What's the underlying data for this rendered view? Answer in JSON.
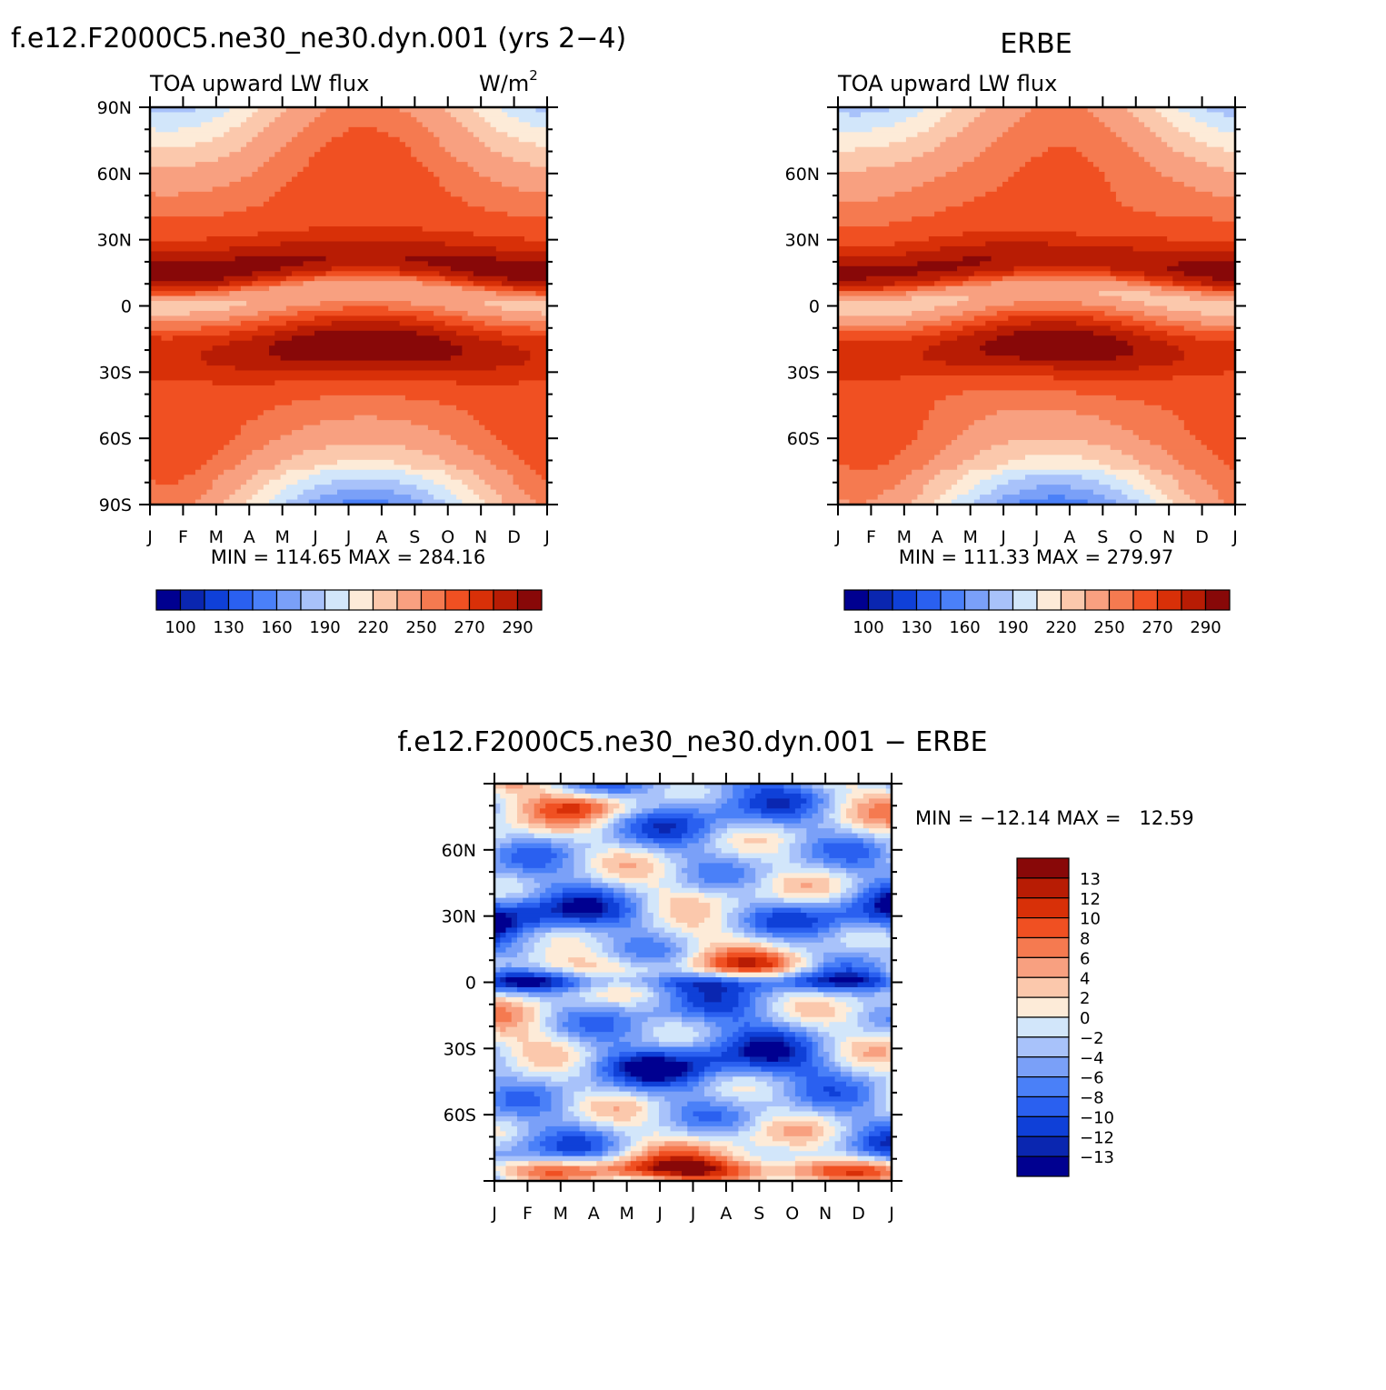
{
  "panels": {
    "model": {
      "title": "f.e12.F2000C5.ne30_ne30.dyn.001 (yrs 2−4)",
      "left_label": "TOA upward LW flux",
      "units_base": "W/m",
      "units_sup": "2",
      "stats": "MIN = 114.65 MAX = 284.16"
    },
    "obs": {
      "title": "ERBE",
      "left_label": "TOA upward LW flux",
      "stats": "MIN = 111.33 MAX = 279.97"
    },
    "diff": {
      "title": "f.e12.F2000C5.ne30_ne30.dyn.001 − ERBE",
      "stats": "MIN = −12.14 MAX =   12.59"
    }
  },
  "chart_data": [
    {
      "type": "heatmap",
      "name": "model",
      "x_ticks": [
        "J",
        "F",
        "M",
        "A",
        "M",
        "J",
        "J",
        "A",
        "S",
        "O",
        "N",
        "D",
        "J"
      ],
      "y_ticks": [
        "90N",
        "60N",
        "30N",
        "0",
        "30S",
        "60S",
        "90S"
      ],
      "ylim": [
        -90,
        90
      ],
      "zmin": 114.65,
      "zmax": 284.16,
      "colorbar": {
        "levels": [
          "100",
          "130",
          "160",
          "190",
          "220",
          "250",
          "270",
          "290"
        ],
        "colors": [
          "#000090",
          "#0a26b0",
          "#0f40d8",
          "#2a60f0",
          "#4a80f8",
          "#7aa0f8",
          "#a8c2fa",
          "#d2e6fa",
          "#fdebd8",
          "#fbc8ac",
          "#f8a080",
          "#f57a50",
          "#f05022",
          "#d83008",
          "#b81c04",
          "#880808"
        ]
      },
      "field": {
        "description_free": true
      }
    },
    {
      "type": "heatmap",
      "name": "obs",
      "x_ticks": [
        "J",
        "F",
        "M",
        "A",
        "M",
        "J",
        "J",
        "A",
        "S",
        "O",
        "N",
        "D",
        "J"
      ],
      "y_ticks": [
        "60N",
        "30N",
        "0",
        "30S",
        "60S"
      ],
      "ylim": [
        -90,
        90
      ],
      "zmin": 111.33,
      "zmax": 279.97,
      "colorbar": {
        "levels": [
          "100",
          "130",
          "160",
          "190",
          "220",
          "250",
          "270",
          "290"
        ],
        "colors": [
          "#000090",
          "#0a26b0",
          "#0f40d8",
          "#2a60f0",
          "#4a80f8",
          "#7aa0f8",
          "#a8c2fa",
          "#d2e6fa",
          "#fdebd8",
          "#fbc8ac",
          "#f8a080",
          "#f57a50",
          "#f05022",
          "#d83008",
          "#b81c04",
          "#880808"
        ]
      }
    },
    {
      "type": "heatmap",
      "name": "diff",
      "x_ticks": [
        "J",
        "F",
        "M",
        "A",
        "M",
        "J",
        "J",
        "A",
        "S",
        "O",
        "N",
        "D",
        "J"
      ],
      "y_ticks": [
        "60N",
        "30N",
        "0",
        "30S",
        "60S"
      ],
      "ylim": [
        -90,
        90
      ],
      "zmin": -12.14,
      "zmax": 12.59,
      "colorbar": {
        "levels": [
          "13",
          "12",
          "10",
          "8",
          "6",
          "4",
          "2",
          "0",
          "−2",
          "−4",
          "−6",
          "−8",
          "−10",
          "−12",
          "−13"
        ],
        "colors": [
          "#880808",
          "#b81c04",
          "#d83008",
          "#f05022",
          "#f57a50",
          "#f8a080",
          "#fbc8ac",
          "#fdebd8",
          "#d2e6fa",
          "#a8c2fa",
          "#7aa0f8",
          "#4a80f8",
          "#2a60f0",
          "#0f40d8",
          "#0a26b0",
          "#000090"
        ]
      }
    }
  ]
}
